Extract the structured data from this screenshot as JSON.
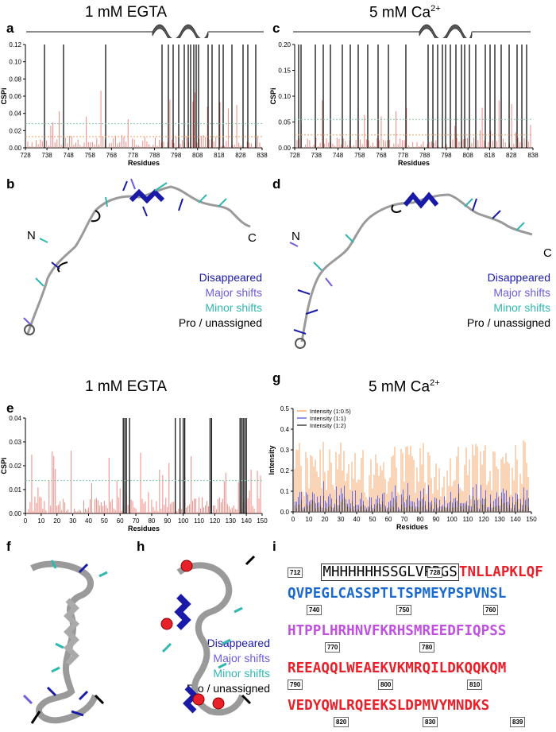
{
  "panels": {
    "a": {
      "letter": "a",
      "title": "1 mM EGTA",
      "ylabel": "CSPi",
      "xlabel": "Residues",
      "yticks": [
        "0.00",
        "0.02",
        "0.04",
        "0.06",
        "0.08",
        "0.10",
        "0.12"
      ],
      "xticks": [
        "728",
        "738",
        "748",
        "758",
        "768",
        "778",
        "788",
        "798",
        "808",
        "818",
        "828",
        "838"
      ]
    },
    "c": {
      "letter": "c",
      "title": "5 mM Ca",
      "title_sup": "2+",
      "ylabel": "CSPi",
      "xlabel": "Residues",
      "yticks": [
        "0.00",
        "0.05",
        "0.10",
        "0.15",
        "0.20"
      ],
      "xticks": [
        "728",
        "738",
        "748",
        "758",
        "768",
        "778",
        "788",
        "798",
        "808",
        "818",
        "828",
        "838"
      ]
    },
    "b": {
      "letter": "b",
      "n_label": "N",
      "c_label": "C"
    },
    "d": {
      "letter": "d",
      "n_label": "N",
      "c_label": "C"
    },
    "e": {
      "letter": "e",
      "title": "1 mM EGTA",
      "ylabel": "CSPi",
      "xlabel": "Residues",
      "yticks": [
        "0.00",
        "0.01",
        "0.02",
        "0.03",
        "0.04"
      ],
      "xticks": [
        "0",
        "10",
        "20",
        "30",
        "40",
        "50",
        "60",
        "70",
        "80",
        "90",
        "100",
        "110",
        "120",
        "130",
        "140",
        "150"
      ]
    },
    "g": {
      "letter": "g",
      "title": "5 mM Ca",
      "title_sup": "2+",
      "ylabel": "Intensity",
      "xlabel": "Residues",
      "yticks": [
        "0.0",
        "0.1",
        "0.2",
        "0.3",
        "0.4",
        "0.5"
      ],
      "xticks": [
        "0",
        "10",
        "20",
        "30",
        "40",
        "50",
        "60",
        "70",
        "80",
        "90",
        "100",
        "110",
        "120",
        "130",
        "140",
        "150"
      ],
      "legend": [
        "Intensity (1:0.5)",
        "Intensity (1:1)",
        "Intensity (1:2)"
      ]
    },
    "f": {
      "letter": "f"
    },
    "h": {
      "letter": "h"
    },
    "i": {
      "letter": "i"
    }
  },
  "legend_b": [
    "Disappeared",
    "Major shifts",
    "Minor shifts",
    "Pro / unassigned"
  ],
  "legend_d": [
    "Disappeared",
    "Major shifts",
    "Minor shifts",
    "Pro / unassigned"
  ],
  "legend_f": [
    "Disappeared",
    "Major shifts",
    "Minor shifts",
    "Pro / unassigned"
  ],
  "colors": {
    "disappeared": "#1a1aa8",
    "major": "#6b5ce0",
    "minor": "#2fb8b0",
    "pro": "#000000",
    "cspi_bar": "#f08a84",
    "thresh_green": "#7bc8a4",
    "thresh_orange": "#f0a060",
    "int_05": "#f5b07a",
    "int_1": "#6b6be6",
    "int_2": "#444444",
    "seq_red": "#e8202a",
    "seq_violet": "#c050e0",
    "seq_blue": "#1a6ad0"
  },
  "sequence": {
    "tag": "MHHHHHHSSGLVPRGS",
    "line1_rest": "TNLLAPKLQF",
    "line2": "QVPEGLCASSPTLTSPMEYPSPVNSL",
    "line3": "HTPPLHRHNVFKRHSMREEDFIQPSS",
    "line4": "REEAQQLWEAEKVKMRQILDKQQKQM",
    "line5": "VEDYQWLRQEEKSLDPMVYMNDKS",
    "numbers": [
      "712",
      "728",
      "740",
      "750",
      "760",
      "770",
      "780",
      "790",
      "800",
      "810",
      "820",
      "830",
      "839"
    ]
  }
}
